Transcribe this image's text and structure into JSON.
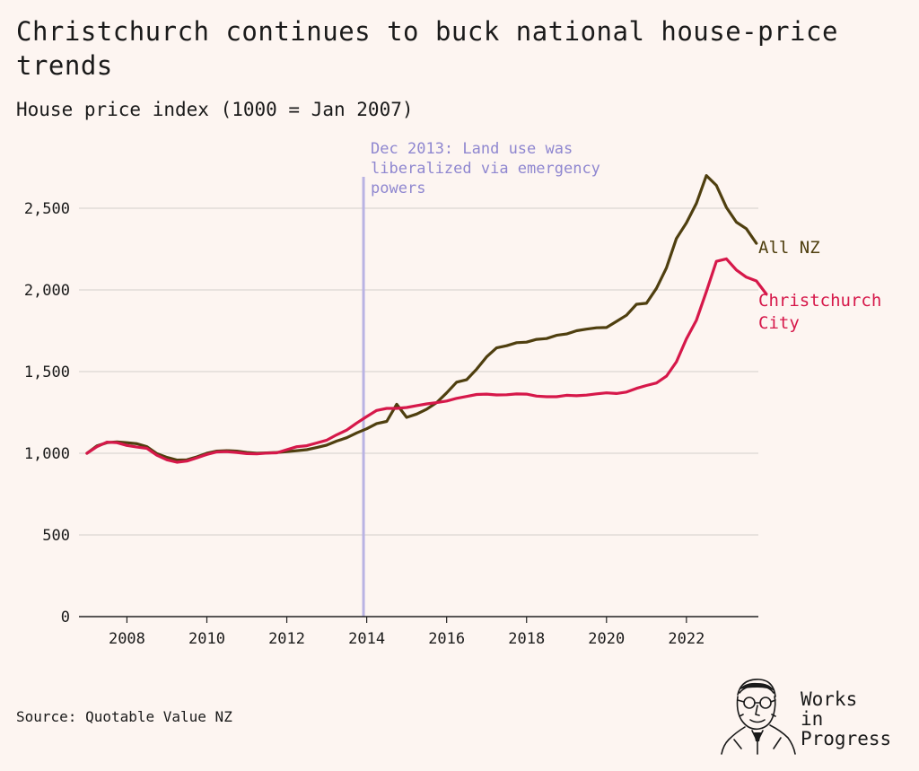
{
  "header": {
    "title": "Christchurch continues to buck national house-price trends",
    "subtitle": "House price index (1000 = Jan 2007)"
  },
  "footer": {
    "source": "Source: Quotable Value NZ",
    "logo_lines": [
      "Works",
      "in",
      "Progress"
    ]
  },
  "colors": {
    "all_nz": "#4f3f0f",
    "christchurch": "#d6184a",
    "annotation": "#b9b3e3",
    "annotation_text": "#8f87d0",
    "grid": "#dcd6d2",
    "axis": "#222222",
    "background": "#fdf5f1"
  },
  "chart_data": {
    "type": "line",
    "title": "Christchurch continues to buck national house-price trends",
    "subtitle": "House price index (1000 = Jan 2007)",
    "xlabel": "",
    "ylabel": "",
    "xlim": [
      2006.8,
      2023.8
    ],
    "ylim": [
      0,
      2800
    ],
    "x_ticks": [
      2008,
      2010,
      2012,
      2014,
      2016,
      2018,
      2020,
      2022
    ],
    "y_ticks": [
      0,
      500,
      1000,
      1500,
      2000,
      2500
    ],
    "y_tick_labels": [
      "0",
      "500",
      "1,000",
      "1,500",
      "2,000",
      "2,500"
    ],
    "grid": "horizontal",
    "legend": "direct labels at line ends",
    "annotations": [
      {
        "x": 2013.92,
        "lines": [
          "Dec 2013: Land use was",
          "liberalized via emergency",
          "powers"
        ]
      }
    ],
    "series": [
      {
        "name": "All NZ",
        "label_lines": [
          "All NZ"
        ],
        "points": [
          [
            2007.0,
            1000
          ],
          [
            2007.25,
            1045
          ],
          [
            2007.5,
            1065
          ],
          [
            2007.75,
            1070
          ],
          [
            2008.0,
            1065
          ],
          [
            2008.25,
            1058
          ],
          [
            2008.5,
            1040
          ],
          [
            2008.75,
            998
          ],
          [
            2009.0,
            975
          ],
          [
            2009.25,
            958
          ],
          [
            2009.5,
            960
          ],
          [
            2009.75,
            978
          ],
          [
            2010.0,
            1000
          ],
          [
            2010.25,
            1013
          ],
          [
            2010.5,
            1016
          ],
          [
            2010.75,
            1013
          ],
          [
            2011.0,
            1005
          ],
          [
            2011.25,
            1000
          ],
          [
            2011.5,
            1002
          ],
          [
            2011.75,
            1005
          ],
          [
            2012.0,
            1010
          ],
          [
            2012.25,
            1016
          ],
          [
            2012.5,
            1022
          ],
          [
            2012.75,
            1035
          ],
          [
            2013.0,
            1050
          ],
          [
            2013.25,
            1075
          ],
          [
            2013.5,
            1095
          ],
          [
            2013.75,
            1125
          ],
          [
            2014.0,
            1150
          ],
          [
            2014.25,
            1182
          ],
          [
            2014.5,
            1195
          ],
          [
            2014.75,
            1300
          ],
          [
            2015.0,
            1220
          ],
          [
            2015.25,
            1240
          ],
          [
            2015.5,
            1270
          ],
          [
            2015.75,
            1310
          ],
          [
            2016.0,
            1370
          ],
          [
            2016.25,
            1435
          ],
          [
            2016.5,
            1450
          ],
          [
            2016.75,
            1515
          ],
          [
            2017.0,
            1590
          ],
          [
            2017.25,
            1645
          ],
          [
            2017.5,
            1658
          ],
          [
            2017.75,
            1677
          ],
          [
            2018.0,
            1680
          ],
          [
            2018.25,
            1697
          ],
          [
            2018.5,
            1702
          ],
          [
            2018.75,
            1722
          ],
          [
            2019.0,
            1730
          ],
          [
            2019.25,
            1750
          ],
          [
            2019.5,
            1760
          ],
          [
            2019.75,
            1768
          ],
          [
            2020.0,
            1770
          ],
          [
            2020.25,
            1807
          ],
          [
            2020.5,
            1845
          ],
          [
            2020.75,
            1912
          ],
          [
            2021.0,
            1918
          ],
          [
            2021.25,
            2010
          ],
          [
            2021.5,
            2135
          ],
          [
            2021.75,
            2315
          ],
          [
            2022.0,
            2410
          ],
          [
            2022.25,
            2530
          ],
          [
            2022.5,
            2700
          ],
          [
            2022.75,
            2640
          ],
          [
            2023.0,
            2505
          ],
          [
            2023.25,
            2415
          ],
          [
            2023.5,
            2375
          ],
          [
            2023.75,
            2285
          ]
        ]
      },
      {
        "name": "Christchurch City",
        "label_lines": [
          "Christchurch",
          "City"
        ],
        "points": [
          [
            2007.0,
            1000
          ],
          [
            2007.25,
            1040
          ],
          [
            2007.5,
            1068
          ],
          [
            2007.75,
            1065
          ],
          [
            2008.0,
            1048
          ],
          [
            2008.25,
            1038
          ],
          [
            2008.5,
            1030
          ],
          [
            2008.75,
            988
          ],
          [
            2009.0,
            960
          ],
          [
            2009.25,
            945
          ],
          [
            2009.5,
            952
          ],
          [
            2009.75,
            972
          ],
          [
            2010.0,
            993
          ],
          [
            2010.25,
            1008
          ],
          [
            2010.5,
            1010
          ],
          [
            2010.75,
            1005
          ],
          [
            2011.0,
            998
          ],
          [
            2011.25,
            996
          ],
          [
            2011.5,
            1001
          ],
          [
            2011.75,
            1003
          ],
          [
            2012.0,
            1022
          ],
          [
            2012.25,
            1040
          ],
          [
            2012.5,
            1046
          ],
          [
            2012.75,
            1063
          ],
          [
            2013.0,
            1080
          ],
          [
            2013.25,
            1113
          ],
          [
            2013.5,
            1142
          ],
          [
            2013.75,
            1185
          ],
          [
            2014.0,
            1225
          ],
          [
            2014.25,
            1262
          ],
          [
            2014.5,
            1275
          ],
          [
            2014.75,
            1275
          ],
          [
            2015.0,
            1280
          ],
          [
            2015.25,
            1292
          ],
          [
            2015.5,
            1302
          ],
          [
            2015.75,
            1310
          ],
          [
            2016.0,
            1320
          ],
          [
            2016.25,
            1336
          ],
          [
            2016.5,
            1348
          ],
          [
            2016.75,
            1360
          ],
          [
            2017.0,
            1362
          ],
          [
            2017.25,
            1357
          ],
          [
            2017.5,
            1358
          ],
          [
            2017.75,
            1363
          ],
          [
            2018.0,
            1362
          ],
          [
            2018.25,
            1350
          ],
          [
            2018.5,
            1346
          ],
          [
            2018.75,
            1346
          ],
          [
            2019.0,
            1355
          ],
          [
            2019.25,
            1352
          ],
          [
            2019.5,
            1356
          ],
          [
            2019.75,
            1364
          ],
          [
            2020.0,
            1370
          ],
          [
            2020.25,
            1366
          ],
          [
            2020.5,
            1375
          ],
          [
            2020.75,
            1397
          ],
          [
            2021.0,
            1415
          ],
          [
            2021.25,
            1430
          ],
          [
            2021.5,
            1472
          ],
          [
            2021.75,
            1560
          ],
          [
            2022.0,
            1700
          ],
          [
            2022.25,
            1815
          ],
          [
            2022.5,
            1990
          ],
          [
            2022.75,
            2175
          ],
          [
            2023.0,
            2190
          ],
          [
            2023.25,
            2122
          ],
          [
            2023.5,
            2078
          ],
          [
            2023.75,
            2055
          ],
          [
            2024.0,
            1975
          ]
        ]
      }
    ]
  }
}
